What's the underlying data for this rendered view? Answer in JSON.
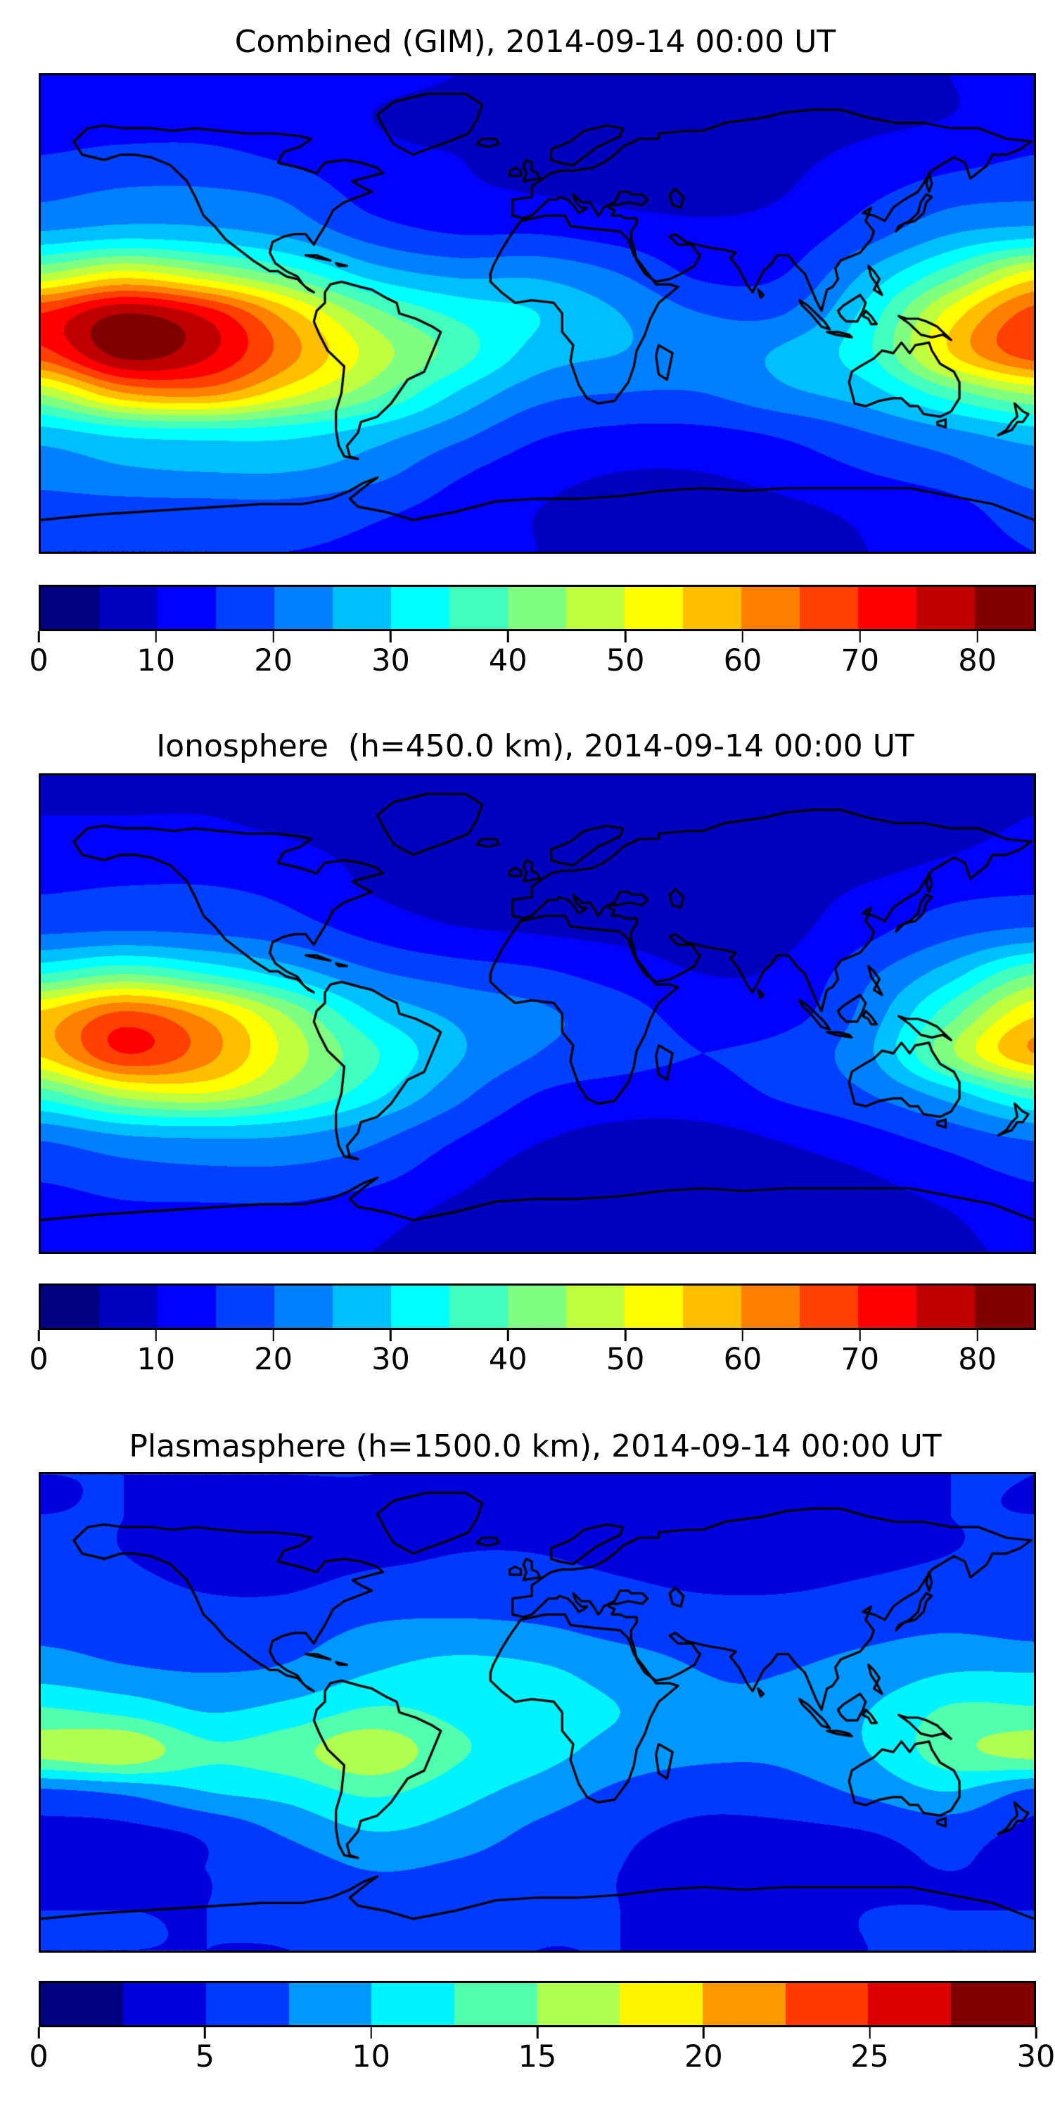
{
  "figure": {
    "background": "#ffffff",
    "text_color": "#000000",
    "colormap": "jet"
  },
  "chart_data": [
    {
      "type": "heatmap",
      "title": "Combined (GIM), 2014-09-14 00:00 UT",
      "projection": "equirectangular world map with coastlines",
      "colorbar": {
        "orientation": "horizontal",
        "vmin": 0,
        "vmax": 85,
        "level_step": 5,
        "n_segments": 17,
        "ticks": [
          0,
          10,
          20,
          30,
          40,
          50,
          60,
          70,
          80
        ]
      },
      "grid": {
        "lon_start": -180,
        "lon_step": 30,
        "lat_start": 90,
        "lat_step": -15,
        "values": [
          [
            12,
            12,
            12,
            12,
            11,
            10,
            9,
            8,
            8,
            8,
            9,
            10,
            12
          ],
          [
            13,
            13,
            13,
            12,
            10,
            9,
            9,
            8,
            8,
            8,
            9,
            10,
            13
          ],
          [
            15,
            16,
            16,
            14,
            11,
            10,
            9,
            9,
            8,
            9,
            11,
            13,
            15
          ],
          [
            19,
            21,
            21,
            19,
            13,
            11,
            10,
            9,
            9,
            10,
            14,
            18,
            19
          ],
          [
            26,
            28,
            27,
            24,
            18,
            15,
            15,
            13,
            11,
            12,
            18,
            25,
            28
          ],
          [
            45,
            52,
            46,
            38,
            28,
            24,
            24,
            20,
            14,
            15,
            26,
            38,
            52
          ],
          [
            70,
            80,
            73,
            57,
            42,
            34,
            30,
            25,
            20,
            20,
            32,
            52,
            67
          ],
          [
            68,
            82,
            76,
            62,
            48,
            38,
            28,
            25,
            23,
            26,
            34,
            55,
            68
          ],
          [
            46,
            60,
            62,
            52,
            42,
            30,
            22,
            20,
            20,
            24,
            28,
            38,
            46
          ],
          [
            28,
            32,
            33,
            32,
            28,
            22,
            16,
            14,
            14,
            16,
            20,
            24,
            28
          ],
          [
            22,
            24,
            25,
            25,
            22,
            16,
            12,
            10,
            10,
            12,
            15,
            18,
            22
          ],
          [
            18,
            18,
            18,
            18,
            16,
            13,
            10,
            8,
            8,
            9,
            11,
            13,
            18
          ],
          [
            15,
            15,
            15,
            15,
            14,
            12,
            10,
            8,
            8,
            8,
            10,
            12,
            15
          ]
        ]
      }
    },
    {
      "type": "heatmap",
      "title": "Ionosphere  (h=450.0 km), 2014-09-14 00:00 UT",
      "projection": "equirectangular world map with coastlines",
      "colorbar": {
        "orientation": "horizontal",
        "vmin": 0,
        "vmax": 85,
        "level_step": 5,
        "n_segments": 17,
        "ticks": [
          0,
          10,
          20,
          30,
          40,
          50,
          60,
          70,
          80
        ]
      },
      "grid": {
        "lon_start": -180,
        "lon_step": 30,
        "lat_start": 90,
        "lat_step": -15,
        "values": [
          [
            9,
            9,
            9,
            9,
            8,
            8,
            7,
            7,
            6,
            6,
            7,
            8,
            9
          ],
          [
            10,
            10,
            10,
            9,
            8,
            7,
            7,
            6,
            6,
            6,
            7,
            8,
            10
          ],
          [
            12,
            12,
            12,
            11,
            9,
            8,
            7,
            7,
            6,
            7,
            8,
            10,
            12
          ],
          [
            15,
            16,
            16,
            14,
            10,
            8,
            8,
            7,
            7,
            8,
            11,
            14,
            15
          ],
          [
            20,
            21,
            20,
            18,
            14,
            11,
            10,
            9,
            8,
            9,
            14,
            19,
            22
          ],
          [
            35,
            40,
            35,
            28,
            21,
            18,
            16,
            13,
            10,
            11,
            19,
            28,
            40
          ],
          [
            56,
            66,
            58,
            44,
            30,
            24,
            21,
            17,
            13,
            13,
            22,
            38,
            54
          ],
          [
            56,
            70,
            62,
            48,
            36,
            26,
            20,
            17,
            15,
            17,
            24,
            44,
            60
          ],
          [
            38,
            48,
            50,
            42,
            32,
            22,
            15,
            13,
            13,
            16,
            20,
            28,
            38
          ],
          [
            22,
            26,
            27,
            26,
            22,
            16,
            11,
            9,
            9,
            11,
            14,
            18,
            22
          ],
          [
            16,
            18,
            19,
            19,
            17,
            12,
            8,
            7,
            7,
            8,
            10,
            13,
            16
          ],
          [
            13,
            14,
            14,
            14,
            12,
            9,
            7,
            6,
            6,
            6,
            8,
            10,
            13
          ],
          [
            11,
            11,
            11,
            11,
            10,
            8,
            7,
            6,
            6,
            6,
            7,
            9,
            11
          ]
        ]
      }
    },
    {
      "type": "heatmap",
      "title": "Plasmasphere (h=1500.0 km), 2014-09-14 00:00 UT",
      "projection": "equirectangular world map with coastlines",
      "colorbar": {
        "orientation": "horizontal",
        "vmin": 0,
        "vmax": 30,
        "level_step": 2.5,
        "n_segments": 12,
        "ticks": [
          0,
          5,
          10,
          15,
          20,
          25,
          30
        ]
      },
      "grid": {
        "lon_start": -180,
        "lon_step": 30,
        "lat_start": 90,
        "lat_step": -15,
        "values": [
          [
            5,
            5,
            5,
            5,
            5,
            4.5,
            4.5,
            4.5,
            4.5,
            4.5,
            4.5,
            5,
            5
          ],
          [
            5,
            5,
            4.5,
            4,
            4,
            4.5,
            4.5,
            4,
            4,
            4,
            4.5,
            5,
            5
          ],
          [
            5.5,
            5,
            4.5,
            4,
            4.5,
            5,
            5,
            4.5,
            4,
            4,
            4.5,
            5,
            5.5
          ],
          [
            6,
            5.5,
            5,
            5,
            6,
            6,
            6,
            5.5,
            5,
            5,
            5.5,
            6,
            6
          ],
          [
            7,
            6.5,
            6,
            6.5,
            8,
            8.5,
            8,
            7,
            6.5,
            6.5,
            7,
            7.5,
            7
          ],
          [
            9,
            8,
            7.5,
            8,
            10,
            11,
            10.5,
            9,
            7.5,
            7.5,
            8.5,
            10,
            10
          ],
          [
            13,
            12,
            10,
            11,
            13,
            12,
            11,
            10,
            8,
            8,
            10,
            13,
            13
          ],
          [
            16,
            17,
            13,
            14,
            17,
            13,
            11,
            9,
            8,
            8,
            10,
            14,
            16
          ],
          [
            7,
            8,
            10,
            11,
            13,
            11,
            9,
            7,
            6,
            6.5,
            8,
            10,
            7
          ],
          [
            4.5,
            4.5,
            5.5,
            8,
            10,
            9,
            7,
            5.5,
            4.5,
            4.5,
            5,
            6,
            4.5
          ],
          [
            4.5,
            4.5,
            5,
            6,
            7.5,
            7,
            6,
            5,
            4,
            4,
            4.5,
            5,
            4.5
          ],
          [
            5,
            5,
            5,
            5.5,
            6,
            6,
            5.5,
            5,
            4.5,
            4.5,
            5,
            5,
            5
          ],
          [
            5,
            5,
            5,
            5,
            5.5,
            5.5,
            5,
            5,
            4.5,
            4.5,
            5,
            5,
            5
          ]
        ]
      }
    }
  ]
}
